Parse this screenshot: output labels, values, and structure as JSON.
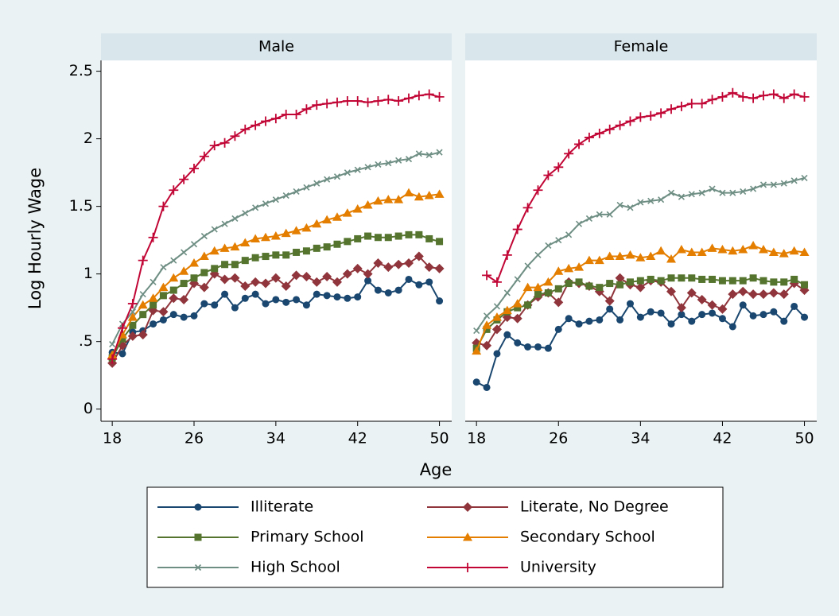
{
  "chart_data": {
    "type": "line",
    "ylabel": "Log Hourly Wage",
    "xlabel": "Age",
    "x": [
      18,
      19,
      20,
      21,
      22,
      23,
      24,
      25,
      26,
      27,
      28,
      29,
      30,
      31,
      32,
      33,
      34,
      35,
      36,
      37,
      38,
      39,
      40,
      41,
      42,
      43,
      44,
      45,
      46,
      47,
      48,
      49,
      50
    ],
    "xlim": [
      16.9,
      51.2
    ],
    "xticks": [
      18,
      26,
      34,
      42,
      50
    ],
    "ylim": [
      -0.09,
      2.58
    ],
    "yticks": [
      0,
      {
        "value": 0.5,
        "label": ".5"
      },
      1,
      1.5,
      2,
      2.5
    ],
    "grid": false,
    "legend": "bottom",
    "series": [
      {
        "name": "Illiterate",
        "color": "#1a476f",
        "marker": "circle"
      },
      {
        "name": "Literate, No Degree",
        "color": "#90353b",
        "marker": "diamond"
      },
      {
        "name": "Primary School",
        "color": "#55752f",
        "marker": "square"
      },
      {
        "name": "Secondary School",
        "color": "#e37e00",
        "marker": "triangle"
      },
      {
        "name": "High School",
        "color": "#6e8e84",
        "marker": "x"
      },
      {
        "name": "University",
        "color": "#c10534",
        "marker": "plus"
      }
    ],
    "panels": [
      {
        "title": "Male",
        "values": [
          [
            0.42,
            0.41,
            0.57,
            0.58,
            0.63,
            0.66,
            0.7,
            0.68,
            0.69,
            0.78,
            0.77,
            0.85,
            0.75,
            0.82,
            0.85,
            0.78,
            0.81,
            0.79,
            0.81,
            0.77,
            0.85,
            0.84,
            0.83,
            0.82,
            0.83,
            0.95,
            0.88,
            0.86,
            0.88,
            0.96,
            0.92,
            0.94,
            0.8
          ],
          [
            0.34,
            0.47,
            0.54,
            0.55,
            0.73,
            0.72,
            0.82,
            0.81,
            0.93,
            0.9,
            1.0,
            0.96,
            0.97,
            0.91,
            0.94,
            0.93,
            0.97,
            0.91,
            0.99,
            0.98,
            0.94,
            0.98,
            0.94,
            1.0,
            1.04,
            1.0,
            1.08,
            1.05,
            1.07,
            1.08,
            1.13,
            1.05,
            1.04
          ],
          [
            0.38,
            0.52,
            0.62,
            0.7,
            0.77,
            0.84,
            0.88,
            0.93,
            0.97,
            1.01,
            1.04,
            1.07,
            1.07,
            1.1,
            1.12,
            1.13,
            1.14,
            1.14,
            1.16,
            1.17,
            1.19,
            1.2,
            1.22,
            1.24,
            1.26,
            1.28,
            1.27,
            1.27,
            1.28,
            1.29,
            1.29,
            1.26,
            1.24
          ],
          [
            0.4,
            0.55,
            0.68,
            0.77,
            0.82,
            0.9,
            0.97,
            1.02,
            1.08,
            1.13,
            1.17,
            1.19,
            1.2,
            1.23,
            1.26,
            1.27,
            1.28,
            1.3,
            1.32,
            1.34,
            1.37,
            1.4,
            1.42,
            1.45,
            1.48,
            1.51,
            1.54,
            1.55,
            1.55,
            1.6,
            1.57,
            1.58,
            1.59
          ],
          [
            0.48,
            0.63,
            0.72,
            0.85,
            0.94,
            1.05,
            1.1,
            1.16,
            1.22,
            1.28,
            1.33,
            1.37,
            1.41,
            1.45,
            1.49,
            1.52,
            1.55,
            1.58,
            1.61,
            1.64,
            1.67,
            1.7,
            1.72,
            1.75,
            1.77,
            1.79,
            1.81,
            1.82,
            1.84,
            1.85,
            1.89,
            1.88,
            1.9
          ],
          [
            0.37,
            0.6,
            0.78,
            1.1,
            1.27,
            1.5,
            1.62,
            1.7,
            1.78,
            1.87,
            1.95,
            1.97,
            2.02,
            2.07,
            2.1,
            2.13,
            2.15,
            2.18,
            2.18,
            2.22,
            2.25,
            2.26,
            2.27,
            2.28,
            2.28,
            2.27,
            2.28,
            2.29,
            2.28,
            2.3,
            2.32,
            2.33,
            2.31
          ]
        ]
      },
      {
        "title": "Female",
        "values": [
          [
            0.2,
            0.16,
            0.41,
            0.55,
            0.49,
            0.46,
            0.46,
            0.45,
            0.59,
            0.67,
            0.63,
            0.65,
            0.66,
            0.74,
            0.66,
            0.78,
            0.68,
            0.72,
            0.71,
            0.63,
            0.7,
            0.65,
            0.7,
            0.71,
            0.67,
            0.61,
            0.77,
            0.69,
            0.7,
            0.72,
            0.65,
            0.76,
            0.68
          ],
          [
            0.49,
            0.47,
            0.59,
            0.68,
            0.67,
            0.77,
            0.83,
            0.86,
            0.79,
            0.94,
            0.93,
            0.91,
            0.87,
            0.8,
            0.97,
            0.92,
            0.9,
            0.95,
            0.94,
            0.87,
            0.75,
            0.86,
            0.81,
            0.77,
            0.74,
            0.85,
            0.87,
            0.85,
            0.85,
            0.86,
            0.85,
            0.93,
            0.88
          ],
          [
            0.45,
            0.59,
            0.66,
            0.72,
            0.75,
            0.77,
            0.85,
            0.86,
            0.89,
            0.93,
            0.94,
            0.91,
            0.9,
            0.93,
            0.92,
            0.94,
            0.95,
            0.96,
            0.95,
            0.97,
            0.97,
            0.97,
            0.96,
            0.96,
            0.95,
            0.95,
            0.95,
            0.97,
            0.95,
            0.94,
            0.94,
            0.96,
            0.92
          ],
          [
            0.43,
            0.62,
            0.68,
            0.73,
            0.78,
            0.9,
            0.9,
            0.94,
            1.02,
            1.04,
            1.05,
            1.1,
            1.1,
            1.13,
            1.13,
            1.14,
            1.12,
            1.13,
            1.17,
            1.11,
            1.18,
            1.16,
            1.16,
            1.19,
            1.18,
            1.17,
            1.18,
            1.21,
            1.18,
            1.16,
            1.15,
            1.17,
            1.16
          ],
          [
            0.58,
            0.69,
            0.76,
            0.86,
            0.96,
            1.06,
            1.14,
            1.21,
            1.25,
            1.29,
            1.37,
            1.41,
            1.44,
            1.44,
            1.51,
            1.49,
            1.53,
            1.54,
            1.55,
            1.6,
            1.57,
            1.59,
            1.6,
            1.63,
            1.6,
            1.6,
            1.61,
            1.63,
            1.66,
            1.66,
            1.67,
            1.69,
            1.71
          ],
          [
            null,
            0.99,
            0.94,
            1.14,
            1.33,
            1.49,
            1.62,
            1.73,
            1.79,
            1.89,
            1.96,
            2.01,
            2.04,
            2.07,
            2.1,
            2.13,
            2.16,
            2.17,
            2.19,
            2.22,
            2.24,
            2.26,
            2.26,
            2.29,
            2.31,
            2.34,
            2.31,
            2.3,
            2.32,
            2.33,
            2.3,
            2.33,
            2.31
          ]
        ]
      }
    ]
  }
}
